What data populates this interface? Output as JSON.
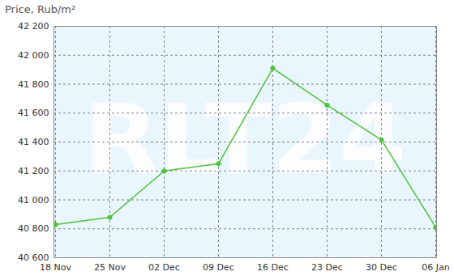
{
  "chart_data": {
    "type": "line",
    "title": "Price, Rub/m²",
    "categories": [
      "18 Nov",
      "25 Nov",
      "02 Dec",
      "09 Dec",
      "16 Dec",
      "23 Dec",
      "30 Dec",
      "06 Jan"
    ],
    "values": [
      40830,
      40880,
      41200,
      41250,
      41910,
      41655,
      41415,
      40810
    ],
    "color": "#4ec23a",
    "marker": "circle",
    "grid": true,
    "ylim": [
      40600,
      42200
    ],
    "yticks": [
      {
        "value": 40600,
        "label": "40 600"
      },
      {
        "value": 40800,
        "label": "40 800"
      },
      {
        "value": 41000,
        "label": "41 000"
      },
      {
        "value": 41200,
        "label": "41 200"
      },
      {
        "value": 41400,
        "label": "41 400"
      },
      {
        "value": 41600,
        "label": "41 600"
      },
      {
        "value": 41800,
        "label": "41 800"
      },
      {
        "value": 42000,
        "label": "42 000"
      },
      {
        "value": 42200,
        "label": "42 200"
      }
    ],
    "annotations": [
      "RLT24"
    ]
  }
}
